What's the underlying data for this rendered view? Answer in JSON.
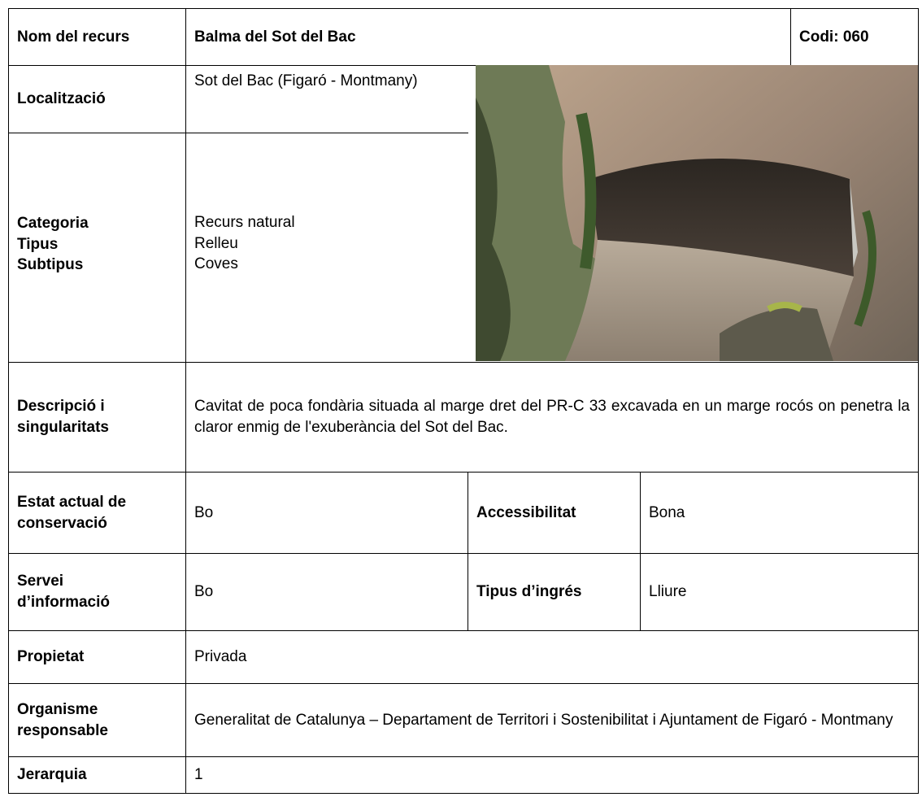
{
  "header": {
    "label": "Nom del recurs",
    "name": "Balma del Sot del Bac",
    "code": "Codi: 060"
  },
  "location": {
    "label": "Localització",
    "value": "Sot del Bac (Figaró - Montmany)"
  },
  "classification": [
    {
      "label": "Categoria",
      "value": "Recurs natural"
    },
    {
      "label": "Tipus",
      "value": "Relleu"
    },
    {
      "label": "Subtipus",
      "value": "Coves"
    }
  ],
  "description": {
    "label": "Descripció i singularitats",
    "value": "Cavitat de poca fondària situada al marge dret del PR-C 33  excavada en un marge rocós on penetra la claror enmig de l'exuberància del Sot del Bac."
  },
  "conservation": {
    "label": "Estat actual de conservació",
    "value": "Bo",
    "label2": "Accessibilitat",
    "value2": "Bona"
  },
  "information": {
    "label": "Servei d’informació",
    "value": "Bo",
    "label2": "Tipus d’ingrés",
    "value2": "Lliure"
  },
  "ownership": {
    "label": "Propietat",
    "value": "Privada"
  },
  "organisation": {
    "label": "Organisme responsable",
    "value": "Generalitat de Catalunya – Departament de Territori i Sostenibilitat i Ajuntament de Figaró - Montmany"
  },
  "hierarchy": {
    "label": "Jerarquia",
    "value": "1"
  }
}
